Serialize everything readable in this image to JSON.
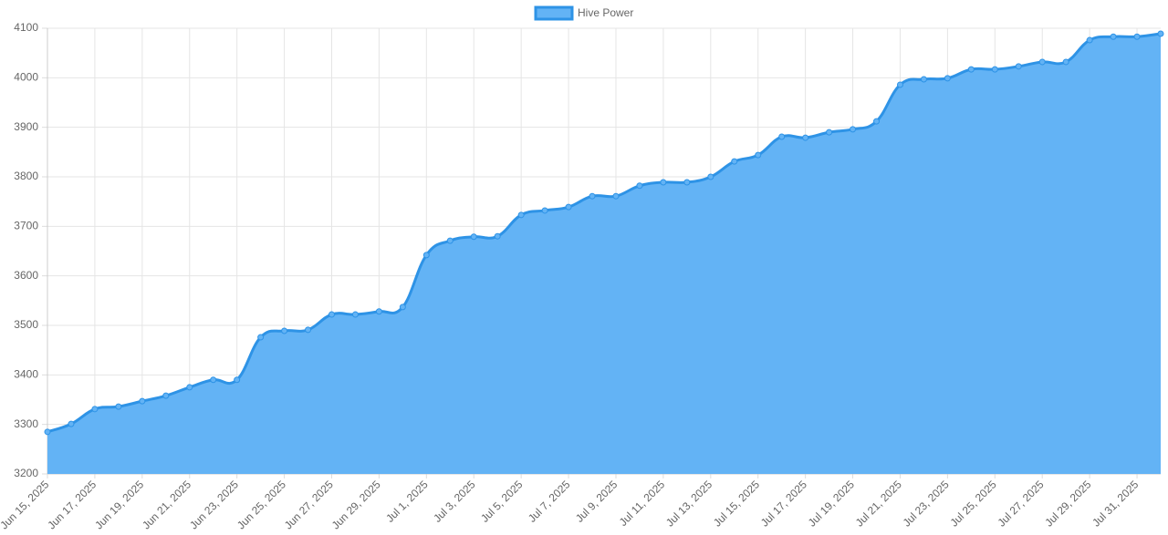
{
  "chart_data": {
    "type": "area",
    "categories": [
      "Jun 15, 2025",
      null,
      "Jun 17, 2025",
      null,
      "Jun 19, 2025",
      null,
      "Jun 21, 2025",
      null,
      "Jun 23, 2025",
      null,
      "Jun 25, 2025",
      null,
      "Jun 27, 2025",
      null,
      "Jun 29, 2025",
      null,
      "Jul 1, 2025",
      null,
      "Jul 3, 2025",
      null,
      "Jul 5, 2025",
      null,
      "Jul 7, 2025",
      null,
      "Jul 9, 2025",
      null,
      "Jul 11, 2025",
      null,
      "Jul 13, 2025",
      null,
      "Jul 15, 2025",
      null,
      "Jul 17, 2025",
      null,
      "Jul 19, 2025",
      null,
      "Jul 21, 2025",
      null,
      "Jul 23, 2025",
      null,
      "Jul 25, 2025",
      null,
      "Jul 27, 2025",
      null,
      "Jul 29, 2025",
      null,
      "Jul 31, 2025",
      null
    ],
    "series": [
      {
        "name": "Hive Power",
        "color": "#2e93e6",
        "fill": "#63b3f5",
        "values": [
          3285,
          3301,
          3331,
          3336,
          3347,
          3358,
          3375,
          3390,
          3390,
          3476,
          3489,
          3491,
          3522,
          3522,
          3528,
          3537,
          3642,
          3671,
          3679,
          3680,
          3723,
          3732,
          3739,
          3761,
          3761,
          3782,
          3789,
          3789,
          3800,
          3831,
          3844,
          3881,
          3879,
          3890,
          3896,
          3912,
          3986,
          3997,
          3999,
          4017,
          4017,
          4023,
          4032,
          4032,
          4076,
          4083,
          4083,
          4089
        ]
      }
    ],
    "ylim": [
      3200,
      4100
    ],
    "yticks": [
      3200,
      3300,
      3400,
      3500,
      3600,
      3700,
      3800,
      3900,
      4000,
      4100
    ],
    "grid": true,
    "legend": "top"
  }
}
